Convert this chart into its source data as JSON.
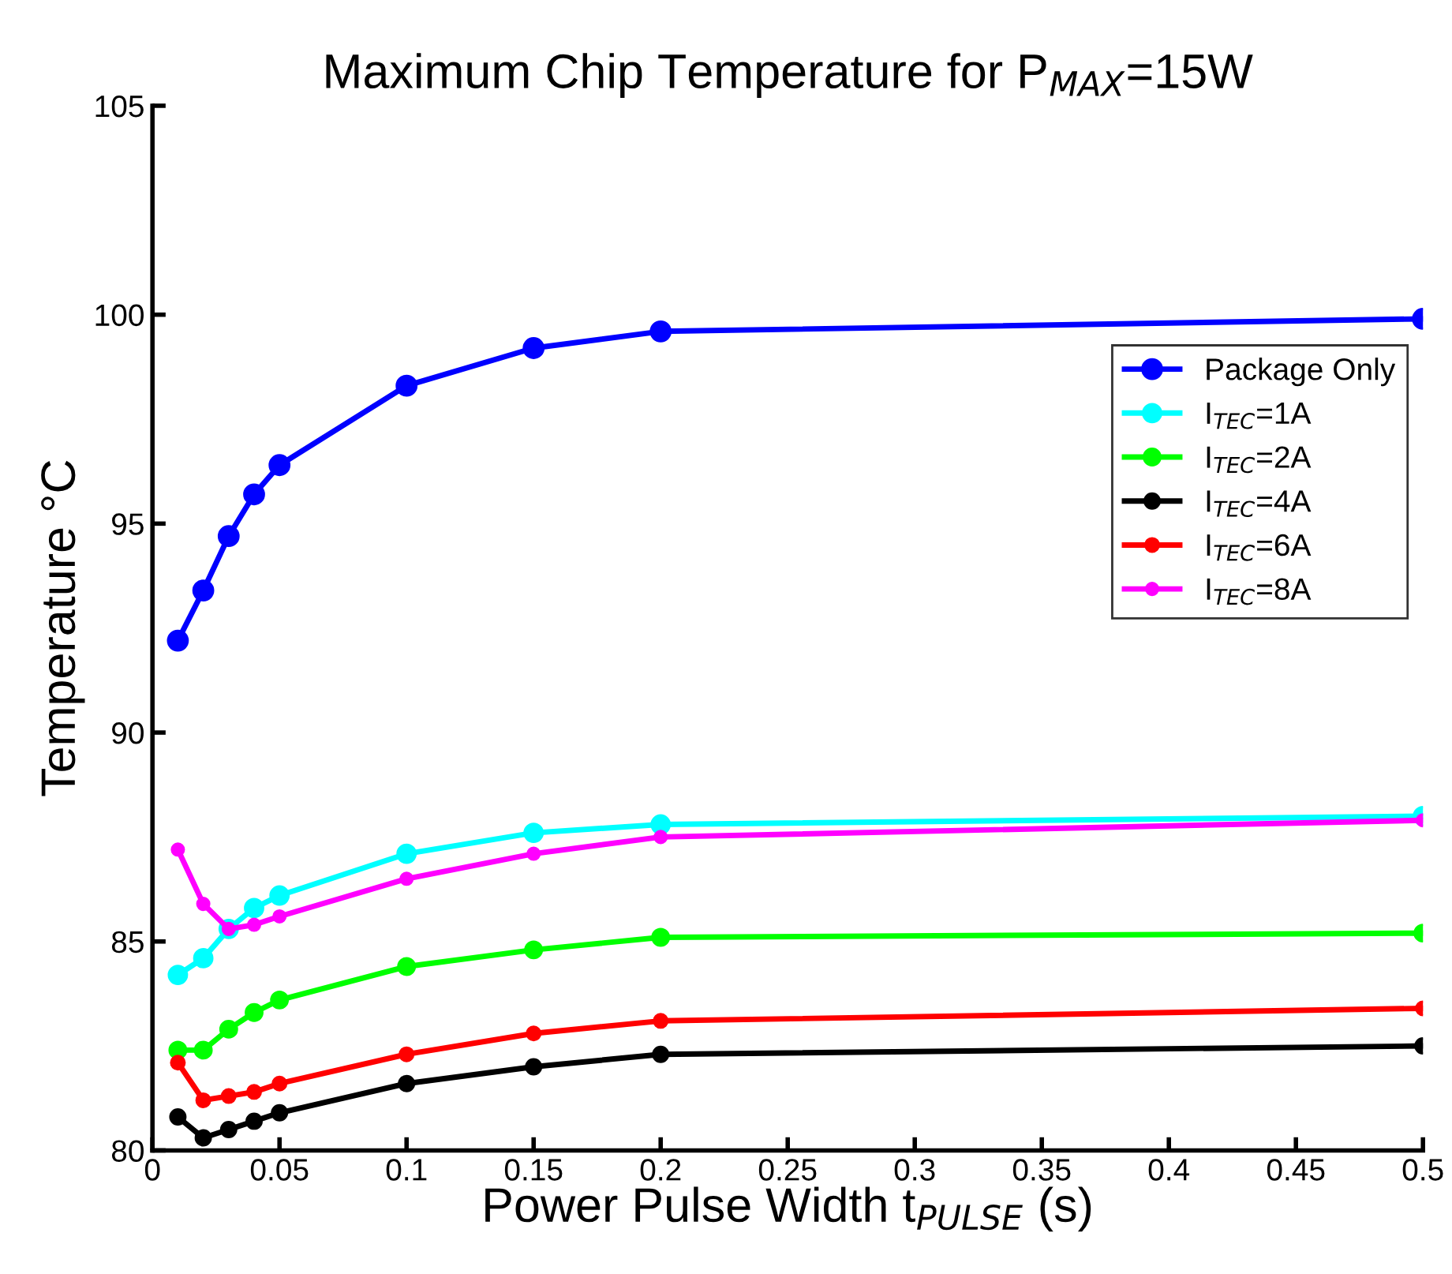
{
  "chart_data": {
    "type": "line",
    "title": "Maximum Chip Temperature for P$_{MAX}$=15W",
    "xlabel": "Power Pulse Width t$_{PULSE}$ (s)",
    "ylabel": "Temperature °C",
    "x": [
      0.01,
      0.02,
      0.03,
      0.04,
      0.05,
      0.1,
      0.15,
      0.2,
      0.5
    ],
    "series": [
      {
        "name": "Package Only",
        "color": "#0000ff",
        "values": [
          92.2,
          93.4,
          94.7,
          95.7,
          96.4,
          98.3,
          99.2,
          99.6,
          99.9
        ]
      },
      {
        "name": "I$_{TEC}$=1A",
        "color": "#00ffff",
        "values": [
          84.2,
          84.6,
          85.3,
          85.8,
          86.1,
          87.1,
          87.6,
          87.8,
          88.0
        ]
      },
      {
        "name": "I$_{TEC}$=2A",
        "color": "#00ff00",
        "values": [
          82.4,
          82.4,
          82.9,
          83.3,
          83.6,
          84.4,
          84.8,
          85.1,
          85.2
        ]
      },
      {
        "name": "I$_{TEC}$=4A",
        "color": "#000000",
        "values": [
          80.8,
          80.3,
          80.5,
          80.7,
          80.9,
          81.6,
          82.0,
          82.3,
          82.5
        ]
      },
      {
        "name": "I$_{TEC}$=6A",
        "color": "#ff0000",
        "values": [
          82.1,
          81.2,
          81.3,
          81.4,
          81.6,
          82.3,
          82.8,
          83.1,
          83.4
        ]
      },
      {
        "name": "I$_{TEC}$=8A",
        "color": "#ff00ff",
        "values": [
          87.2,
          85.9,
          85.3,
          85.4,
          85.6,
          86.5,
          87.1,
          87.5,
          87.9
        ]
      }
    ],
    "xlim": [
      0,
      0.5
    ],
    "xticks": [
      0,
      0.05,
      0.1,
      0.15,
      0.2,
      0.25,
      0.3,
      0.35,
      0.4,
      0.45,
      0.5
    ],
    "ylim": [
      80,
      105
    ],
    "yticks": [
      80,
      85,
      90,
      95,
      100,
      105
    ],
    "legend": "right",
    "marker": "circle",
    "line_style": "solid",
    "grid": false
  }
}
